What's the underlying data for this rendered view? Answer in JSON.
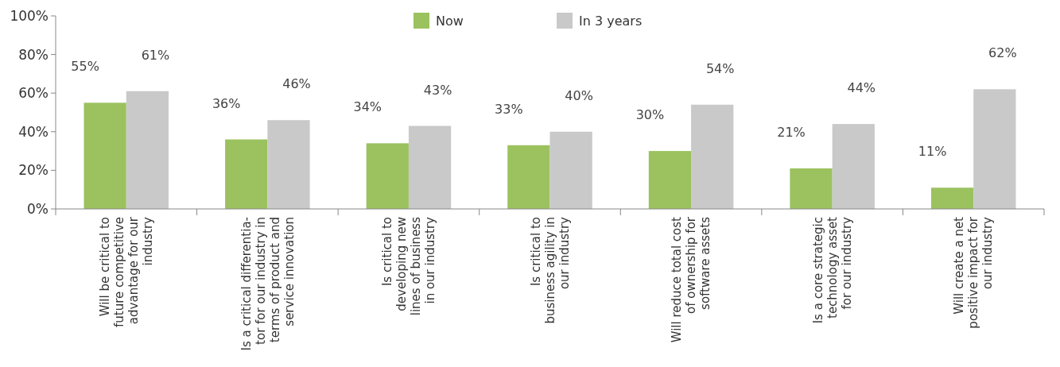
{
  "chart_data": {
    "type": "bar",
    "categories": [
      "Will be critical to\nfuture competitive\nadvantage for our\nindustry",
      "Is a critical differentia-\ntor for our industry in\nterms of product and\nservice innovation",
      "Is critical to\ndeveloping new\nlines of business\nin our industry",
      "Is critical to\nbusiness agility in\nour industry",
      "Will reduce total cost\nof ownership for\nsoftware assets",
      "Is a core strategic\ntechnology asset\nfor our industry",
      "Will create a net\npositive impact for\nour industry"
    ],
    "series": [
      {
        "name": "Now",
        "color": "#9bc25e",
        "values": [
          55,
          36,
          34,
          33,
          30,
          21,
          11
        ],
        "value_labels": [
          "55%",
          "36%",
          "34%",
          "33%",
          "30%",
          "21%",
          "11%"
        ]
      },
      {
        "name": "In 3 years",
        "color": "#c9c9c9",
        "values": [
          61,
          46,
          43,
          40,
          54,
          44,
          62
        ],
        "value_labels": [
          "61%",
          "46%",
          "43%",
          "40%",
          "54%",
          "44%",
          "62%"
        ]
      }
    ],
    "ylim": [
      0,
      100
    ],
    "yticks": [
      {
        "value": 0,
        "label": "0%"
      },
      {
        "value": 20,
        "label": "20%"
      },
      {
        "value": 40,
        "label": "40%"
      },
      {
        "value": 60,
        "label": "60%"
      },
      {
        "value": 80,
        "label": "80%"
      },
      {
        "value": 100,
        "label": "100%"
      }
    ],
    "grid": false,
    "legend": "top"
  }
}
